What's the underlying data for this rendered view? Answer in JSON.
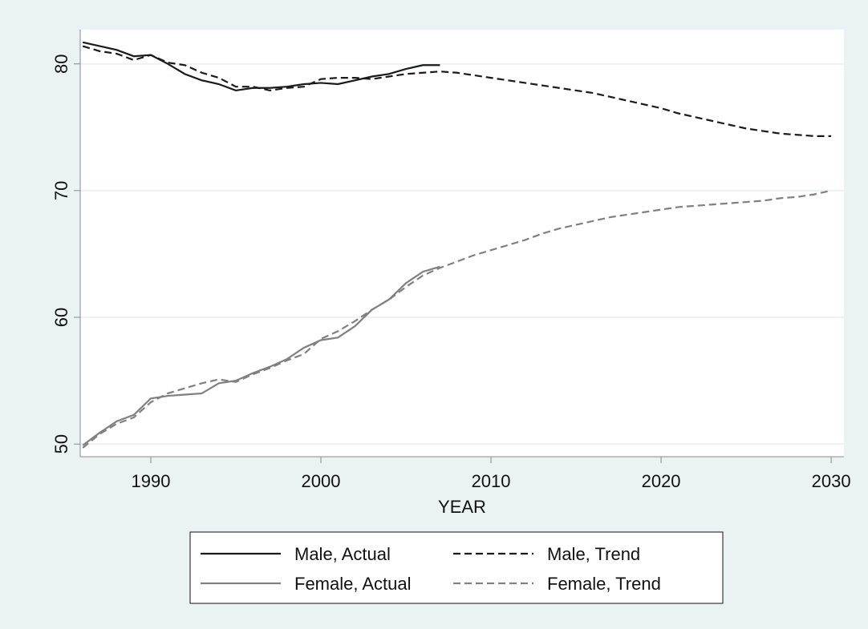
{
  "chart_data": {
    "type": "line",
    "x_label": "YEAR",
    "x": [
      1986,
      1987,
      1988,
      1989,
      1990,
      1991,
      1992,
      1993,
      1994,
      1995,
      1996,
      1997,
      1998,
      1999,
      2000,
      2001,
      2002,
      2003,
      2004,
      2005,
      2006,
      2007,
      2008,
      2009,
      2010,
      2011,
      2012,
      2013,
      2014,
      2015,
      2016,
      2017,
      2018,
      2019,
      2020,
      2021,
      2022,
      2023,
      2024,
      2025,
      2026,
      2027,
      2028,
      2029,
      2030
    ],
    "series": [
      {
        "name": "Male, Actual",
        "color": "#1a1a1a",
        "style": "solid",
        "values": [
          81.7,
          81.4,
          81.1,
          80.6,
          80.7,
          80.0,
          79.2,
          78.7,
          78.4,
          77.9,
          78.1,
          78.1,
          78.2,
          78.4,
          78.5,
          78.4,
          78.7,
          79.0,
          79.2,
          79.6,
          79.9,
          79.9,
          null,
          null,
          null,
          null,
          null,
          null,
          null,
          null,
          null,
          null,
          null,
          null,
          null,
          null,
          null,
          null,
          null,
          null,
          null,
          null,
          null,
          null,
          null
        ]
      },
      {
        "name": "Male, Trend",
        "color": "#1a1a1a",
        "style": "dashed",
        "values": [
          81.4,
          81.0,
          80.8,
          80.3,
          80.7,
          80.1,
          79.9,
          79.3,
          78.9,
          78.2,
          78.2,
          77.9,
          78.1,
          78.2,
          78.8,
          78.9,
          78.9,
          78.8,
          79.0,
          79.2,
          79.3,
          79.4,
          79.3,
          79.1,
          78.9,
          78.7,
          78.5,
          78.3,
          78.1,
          77.9,
          77.7,
          77.4,
          77.1,
          76.8,
          76.5,
          76.1,
          75.8,
          75.5,
          75.2,
          74.9,
          74.7,
          74.5,
          74.4,
          74.3,
          74.3
        ]
      },
      {
        "name": "Female, Actual",
        "color": "#808080",
        "style": "solid",
        "values": [
          49.9,
          50.9,
          51.8,
          52.3,
          53.6,
          53.8,
          53.9,
          54.0,
          54.8,
          55.0,
          55.6,
          56.1,
          56.7,
          57.6,
          58.2,
          58.4,
          59.3,
          60.6,
          61.4,
          62.7,
          63.6,
          64.0,
          null,
          null,
          null,
          null,
          null,
          null,
          null,
          null,
          null,
          null,
          null,
          null,
          null,
          null,
          null,
          null,
          null,
          null,
          null,
          null,
          null,
          null,
          null
        ]
      },
      {
        "name": "Female, Trend",
        "color": "#808080",
        "style": "dashed",
        "values": [
          49.7,
          50.8,
          51.6,
          52.1,
          53.3,
          54.0,
          54.4,
          54.8,
          55.1,
          54.9,
          55.5,
          56.0,
          56.6,
          57.1,
          58.3,
          58.9,
          59.7,
          60.6,
          61.4,
          62.4,
          63.3,
          63.9,
          64.4,
          64.9,
          65.3,
          65.7,
          66.1,
          66.6,
          67.0,
          67.3,
          67.6,
          67.9,
          68.1,
          68.3,
          68.5,
          68.7,
          68.8,
          68.9,
          69.0,
          69.1,
          69.2,
          69.4,
          69.5,
          69.7,
          70.0
        ]
      }
    ],
    "xlim": [
      1985.85,
      2030.75
    ],
    "ylim": [
      49.0,
      82.7
    ],
    "xticks": [
      1990,
      2000,
      2010,
      2020,
      2030
    ],
    "yticks": [
      50,
      60,
      70,
      80
    ],
    "grid": true
  }
}
